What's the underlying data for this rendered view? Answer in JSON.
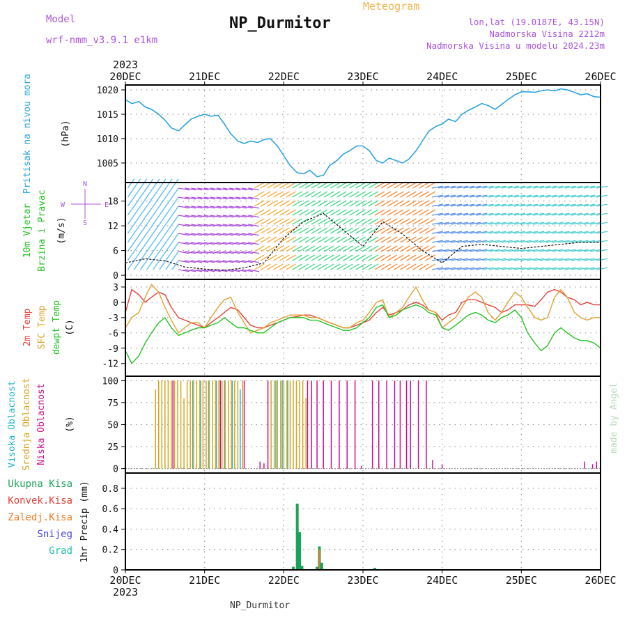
{
  "header": {
    "model_label": "Model",
    "model_name": "wrf-nmm_v3.9.1  e1km",
    "title": "NP_Durmitor",
    "product": "Meteogram",
    "coords": "lon,lat (19.0187E, 43.15N)",
    "altitude": "Nadmorska Visina 2212m",
    "model_altitude": "Nadmorska Visina u modelu 2024.23m",
    "footer": "NP_Durmitor",
    "credit": "made by Angel"
  },
  "colors": {
    "pressure": "#2ba3e0",
    "temp2m": "#e8413a",
    "sfc": "#e0a030",
    "dewpt": "#22c322",
    "high_cloud": "#27b5c9",
    "mid_cloud": "#d9a520",
    "low_cloud": "#cc1188",
    "total_rain": "#1aa35a",
    "conv_rain": "#e8413a",
    "frz_rain": "#f07b22",
    "snow": "#4444dd",
    "grad": "#22bbaa",
    "label_purple": "#aa55dd",
    "label_orange": "#f0b44a"
  },
  "chart_data": [
    {
      "type": "line",
      "panel": "pressure",
      "ylabel_lines": [
        "Pritisak na nivou mora",
        "(hPa)"
      ],
      "ylim": [
        1001,
        1021
      ],
      "yticks": [
        1005,
        1010,
        1015,
        1020
      ],
      "x_days": [
        0,
        0.08,
        0.17,
        0.25,
        0.33,
        0.42,
        0.5,
        0.58,
        0.67,
        0.75,
        0.83,
        0.92,
        1.0,
        1.08,
        1.17,
        1.25,
        1.33,
        1.42,
        1.5,
        1.58,
        1.67,
        1.75,
        1.83,
        1.92,
        2.0,
        2.08,
        2.17,
        2.25,
        2.33,
        2.42,
        2.5,
        2.58,
        2.67,
        2.75,
        2.83,
        2.92,
        3.0,
        3.08,
        3.17,
        3.25,
        3.33,
        3.42,
        3.5,
        3.58,
        3.67,
        3.75,
        3.83,
        3.92,
        4.0,
        4.08,
        4.17,
        4.25,
        4.33,
        4.42,
        4.5,
        4.58,
        4.67,
        4.75,
        4.83,
        4.92,
        5.0,
        5.08,
        5.17,
        5.25,
        5.33,
        5.42,
        5.5,
        5.58,
        5.67,
        5.75,
        5.83,
        5.92,
        6.0
      ],
      "series": [
        {
          "values": [
            1018,
            1017.2,
            1017.6,
            1016.5,
            1016.0,
            1015.0,
            1013.8,
            1012.2,
            1011.6,
            1012.8,
            1014.0,
            1014.6,
            1015.0,
            1014.6,
            1014.8,
            1013.0,
            1011.0,
            1009.5,
            1009.0,
            1009.5,
            1009.2,
            1009.8,
            1010.0,
            1008.5,
            1006.5,
            1004.5,
            1003.0,
            1002.8,
            1003.5,
            1002.2,
            1002.5,
            1004.5,
            1005.5,
            1006.8,
            1007.5,
            1008.5,
            1008.5,
            1007.5,
            1005.5,
            1005.0,
            1006.0,
            1005.5,
            1005.0,
            1005.8,
            1007.5,
            1009.5,
            1011.5,
            1012.5,
            1013.0,
            1014.0,
            1013.5,
            1015.0,
            1015.8,
            1016.5,
            1017.2,
            1016.8,
            1016.0,
            1017.0,
            1018.0,
            1019.0,
            1019.6,
            1019.6,
            1019.5,
            1019.8,
            1020.0,
            1019.8,
            1020.2,
            1020.0,
            1019.5,
            1019.0,
            1019.2,
            1018.6,
            1018.5
          ]
        }
      ]
    },
    {
      "type": "line",
      "panel": "wind",
      "ylabel_lines": [
        "10m Vjetar",
        "Brzina i Pravac",
        "(m/s)"
      ],
      "compass": [
        "N",
        "E",
        "S",
        "W"
      ],
      "ylim": [
        -1,
        22.5
      ],
      "yticks": [
        0,
        6,
        12,
        18
      ],
      "x_days": [
        0,
        0.25,
        0.5,
        0.75,
        1.0,
        1.25,
        1.5,
        1.75,
        2.0,
        2.25,
        2.5,
        2.75,
        3.0,
        3.25,
        3.5,
        3.75,
        4.0,
        4.25,
        4.5,
        4.75,
        5.0,
        5.25,
        5.5,
        5.75,
        6.0
      ],
      "series": [
        {
          "name": "speed",
          "values": [
            3,
            4,
            3.5,
            2,
            1.5,
            1.2,
            1.8,
            3,
            9,
            13,
            15,
            11,
            7,
            13,
            10,
            6,
            3,
            7,
            7.5,
            7,
            6.5,
            7,
            7.5,
            8,
            8
          ]
        }
      ]
    },
    {
      "type": "line",
      "panel": "temperature",
      "ylabel_lines": [
        "2m Temp",
        "SFC Temp",
        "dewpt Temp",
        "(C)"
      ],
      "ylim": [
        -14.5,
        4.5
      ],
      "yticks": [
        -12,
        -9,
        -6,
        -3,
        0,
        3
      ],
      "x_days": [
        0,
        0.08,
        0.17,
        0.25,
        0.33,
        0.42,
        0.5,
        0.58,
        0.67,
        0.75,
        0.83,
        0.92,
        1.0,
        1.08,
        1.17,
        1.25,
        1.33,
        1.42,
        1.5,
        1.58,
        1.67,
        1.75,
        1.83,
        1.92,
        2.0,
        2.08,
        2.17,
        2.25,
        2.33,
        2.42,
        2.5,
        2.58,
        2.67,
        2.75,
        2.83,
        2.92,
        3.0,
        3.08,
        3.17,
        3.25,
        3.33,
        3.42,
        3.5,
        3.58,
        3.67,
        3.75,
        3.83,
        3.92,
        4.0,
        4.08,
        4.17,
        4.25,
        4.33,
        4.42,
        4.5,
        4.58,
        4.67,
        4.75,
        4.83,
        4.92,
        5.0,
        5.08,
        5.17,
        5.25,
        5.33,
        5.42,
        5.5,
        5.58,
        5.67,
        5.75,
        5.83,
        5.92,
        6.0
      ],
      "series": [
        {
          "name": "2m",
          "values": [
            -2,
            2.5,
            1.5,
            0,
            1,
            2,
            1.5,
            -1,
            -3,
            -3.5,
            -4,
            -4.5,
            -5,
            -4,
            -3,
            -2,
            -1,
            -1.5,
            -3,
            -4.5,
            -5,
            -5,
            -4.5,
            -4,
            -3.5,
            -3,
            -2.8,
            -2.5,
            -2.5,
            -3,
            -3.5,
            -4,
            -4.5,
            -5,
            -5,
            -4.5,
            -4,
            -3.5,
            -2,
            -1,
            -2.5,
            -2,
            -1.5,
            -0.5,
            0,
            -0.5,
            -1.5,
            -2,
            -3.5,
            -2.5,
            -2,
            0,
            0.5,
            0.5,
            0,
            -0.5,
            -1,
            -2,
            -1.5,
            -0.5,
            -0.5,
            -0.5,
            -0.8,
            0.5,
            2,
            2.5,
            2,
            1,
            0.5,
            -0.5,
            0,
            -0.5,
            -0.5
          ]
        },
        {
          "name": "sfc",
          "values": [
            -5,
            -3,
            -2,
            1,
            3.5,
            2,
            -1,
            -3.5,
            -6,
            -5,
            -4,
            -4,
            -5,
            -3,
            -1,
            0.5,
            1,
            -2,
            -4,
            -6,
            -5.5,
            -5,
            -4,
            -3.5,
            -3,
            -2.5,
            -2.5,
            -2.5,
            -3,
            -3,
            -3.5,
            -4,
            -4.5,
            -5,
            -5,
            -4,
            -3.5,
            -2,
            0,
            0.5,
            -3,
            -2,
            -1,
            1,
            3,
            0.5,
            -1.5,
            -2,
            -5,
            -4,
            -3,
            -1,
            1,
            2,
            1,
            -2,
            -3.5,
            -2,
            0,
            2,
            1,
            -1,
            -3,
            -3.5,
            -3,
            1,
            2.5,
            1,
            -2,
            -3,
            -3.5,
            -3,
            -3
          ]
        },
        {
          "name": "dewpt",
          "values": [
            -9.5,
            -12,
            -10.5,
            -8,
            -6,
            -4,
            -3,
            -5,
            -6.5,
            -6,
            -5.5,
            -5,
            -5,
            -4.5,
            -4,
            -3,
            -4,
            -5,
            -5,
            -5.5,
            -6,
            -6,
            -5,
            -4,
            -3.5,
            -3,
            -3,
            -3,
            -3.5,
            -3.5,
            -4,
            -4.5,
            -5,
            -5.5,
            -5.5,
            -5,
            -4,
            -3,
            -1,
            -0.5,
            -3,
            -2.5,
            -1.5,
            -1,
            -0.5,
            -1,
            -2,
            -2.5,
            -5,
            -5.5,
            -4.5,
            -3.5,
            -2.5,
            -2,
            -2.5,
            -3.5,
            -4,
            -3,
            -2.5,
            -1.5,
            -3,
            -6,
            -8,
            -9.5,
            -8.5,
            -6,
            -5,
            -6,
            -7,
            -7.5,
            -7.5,
            -8,
            -9
          ]
        }
      ]
    },
    {
      "type": "bar",
      "panel": "cloud",
      "ylabel_lines": [
        "Visoka Oblacnost",
        "Srednja Oblacnost",
        "Niska Oblacnost",
        "(%)"
      ],
      "ylim": [
        -5,
        105
      ],
      "yticks": [
        0,
        25,
        50,
        75,
        100
      ],
      "series": [
        {
          "name": "Visoka Oblacnost",
          "x_days": [
            0.85,
            0.95,
            1.05,
            1.15,
            1.25,
            1.35,
            1.45,
            1.9,
            1.98,
            2.05
          ],
          "values": [
            100,
            100,
            100,
            100,
            100,
            100,
            90,
            100,
            100,
            100
          ]
        },
        {
          "name": "Srednja Oblacnost",
          "x_days": [
            0.38,
            0.42,
            0.46,
            0.5,
            0.54,
            0.58,
            0.62,
            0.66,
            0.7,
            0.74,
            0.78,
            0.82,
            0.86,
            0.9,
            0.94,
            0.98,
            1.02,
            1.06,
            1.1,
            1.14,
            1.18,
            1.22,
            1.26,
            1.3,
            1.34,
            1.38,
            1.42,
            1.48,
            1.84,
            1.88,
            1.92,
            1.96,
            2.0,
            2.04,
            2.08,
            2.12,
            2.16,
            2.2,
            2.24,
            2.28,
            3.2
          ],
          "values": [
            90,
            100,
            100,
            100,
            100,
            100,
            100,
            100,
            100,
            80,
            100,
            100,
            100,
            100,
            100,
            100,
            100,
            100,
            100,
            100,
            100,
            100,
            100,
            100,
            100,
            100,
            100,
            100,
            100,
            100,
            100,
            100,
            100,
            100,
            100,
            100,
            100,
            100,
            100,
            80,
            45
          ]
        },
        {
          "name": "Niska Oblacnost",
          "x_days": [
            0.6,
            1.2,
            1.5,
            1.7,
            1.75,
            1.8,
            2.3,
            2.35,
            2.42,
            2.5,
            2.6,
            2.7,
            2.8,
            2.9,
            2.98,
            3.12,
            3.2,
            3.3,
            3.4,
            3.47,
            3.55,
            3.6,
            3.7,
            3.8,
            3.88,
            4.0,
            5.8,
            5.9,
            5.95,
            6.0
          ],
          "values": [
            100,
            100,
            100,
            8,
            6,
            100,
            100,
            100,
            100,
            100,
            100,
            100,
            100,
            100,
            3,
            100,
            100,
            100,
            100,
            100,
            100,
            100,
            100,
            100,
            10,
            5,
            8,
            5,
            8,
            8
          ]
        }
      ]
    },
    {
      "type": "bar",
      "panel": "precip",
      "ylabel_lines": [
        "1hr Precip (mm)"
      ],
      "legend": [
        "Ukupna Kisa",
        "Konvek.Kisa",
        "Zaledj.Kisa",
        "Snijeg",
        "Grad"
      ],
      "ylim": [
        0,
        0.95
      ],
      "yticks": [
        0,
        0.2,
        0.4,
        0.6,
        0.8
      ],
      "series": [
        {
          "name": "Ukupna Kisa",
          "x_days": [
            2.12,
            2.17,
            2.2,
            2.23,
            2.42,
            2.45,
            2.48,
            3.15
          ],
          "values": [
            0.03,
            0.65,
            0.37,
            0.04,
            0.03,
            0.23,
            0.07,
            0.02
          ]
        },
        {
          "name": "Zaledj.Kisa",
          "x_days": [
            2.45
          ],
          "values": [
            0.2
          ]
        }
      ]
    }
  ],
  "x_axis": {
    "start_year": "2023",
    "labels": [
      "20DEC",
      "21DEC",
      "22DEC",
      "23DEC",
      "24DEC",
      "25DEC",
      "26DEC"
    ]
  }
}
